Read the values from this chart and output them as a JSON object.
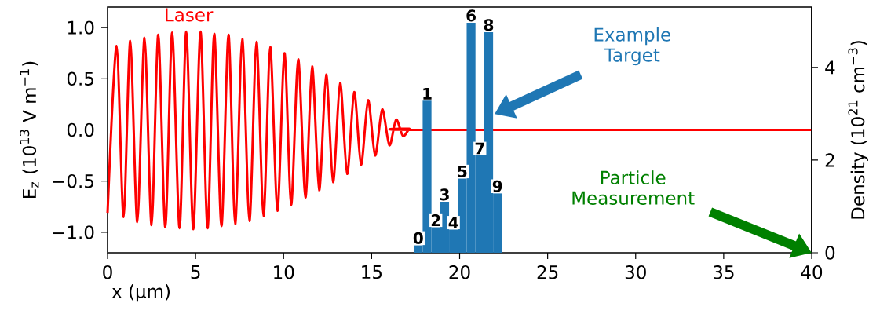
{
  "chart_data": {
    "type": "line",
    "xlabel": "x (µm)",
    "ylabel": "E$_{z}$ (10$^{13}$ V m$^{−1}$)",
    "y2label": "Density (10$^{21}$ cm$^{−3}$)",
    "xlim": [
      0,
      40
    ],
    "ylim": [
      -1.2,
      1.2
    ],
    "y2lim": [
      0,
      5.3
    ],
    "xticks": [
      0,
      5,
      10,
      15,
      20,
      25,
      30,
      35,
      40
    ],
    "yticks": [
      {
        "value": -1,
        "label": "−1.0"
      },
      {
        "value": -0.5,
        "label": "−0.5"
      },
      {
        "value": 0,
        "label": "0.0"
      },
      {
        "value": 0.5,
        "label": "0.5"
      },
      {
        "value": 1,
        "label": "1.0"
      }
    ],
    "y2ticks": [
      0,
      2,
      4
    ],
    "series": [
      {
        "name": "Laser",
        "color": "#ff0000",
        "x": [
          0,
          0.51,
          0.91,
          1.29,
          1.69,
          2.1,
          2.5,
          2.88,
          3.28,
          3.67,
          4.09,
          4.47,
          4.87,
          5.28,
          5.68,
          6.06,
          6.47,
          6.87,
          7.25,
          7.65,
          8.06,
          8.46,
          8.86,
          9.24,
          9.65,
          10.05,
          10.43,
          10.83,
          11.24,
          11.62,
          12.02,
          12.42,
          12.81,
          13.21,
          13.61,
          14.01,
          14.4,
          14.8,
          15.2,
          15.6,
          16.01,
          16.39,
          16.78,
          17.15,
          17.5,
          40
        ],
        "values": [
          -0.81,
          0.82,
          -0.85,
          0.87,
          -0.9,
          0.9,
          -0.93,
          0.93,
          -0.95,
          0.95,
          -0.96,
          0.96,
          -0.97,
          0.96,
          -0.96,
          0.94,
          -0.94,
          0.93,
          -0.92,
          0.89,
          -0.89,
          0.86,
          -0.84,
          0.81,
          -0.79,
          0.75,
          -0.73,
          0.69,
          -0.66,
          0.62,
          -0.59,
          0.54,
          -0.51,
          0.46,
          -0.43,
          0.37,
          -0.34,
          0.29,
          -0.25,
          0.2,
          -0.15,
          0.1,
          -0.06,
          0.01,
          0,
          0
        ]
      },
      {
        "name": "Example Target",
        "type": "histogram",
        "axis": "y2",
        "color": "#1f77b4",
        "bins": [
          17.4,
          17.9,
          18.4,
          18.9,
          19.4,
          19.9,
          20.4,
          20.9,
          21.4,
          21.9,
          22.4
        ],
        "values": [
          0.16,
          3.28,
          0.55,
          1.1,
          0.5,
          1.6,
          4.96,
          2.1,
          4.76,
          1.28
        ]
      }
    ],
    "annotations": [
      "0",
      "1",
      "2",
      "3",
      "4",
      "5",
      "6",
      "7",
      "8",
      "9",
      "Particle Measurement"
    ]
  }
}
